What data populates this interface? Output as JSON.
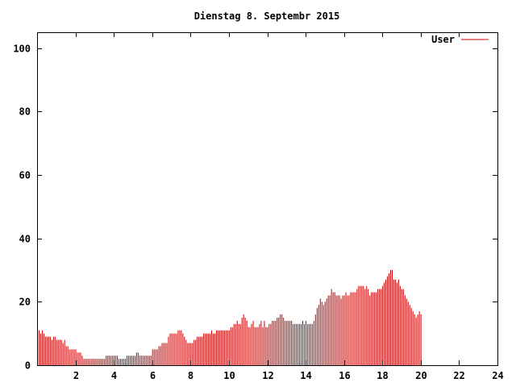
{
  "chart_data": {
    "type": "bar",
    "title": "Dienstag 8. Septembr 2015",
    "xlabel": "",
    "ylabel": "",
    "xlim": [
      0,
      24
    ],
    "ylim": [
      0,
      105
    ],
    "x_ticks": [
      "2",
      "4",
      "6",
      "8",
      "10",
      "12",
      "14",
      "16",
      "18",
      "20",
      "22",
      "24"
    ],
    "y_ticks": [
      "0",
      "20",
      "40",
      "60",
      "80",
      "100"
    ],
    "legend_position": "top-right",
    "grid": false,
    "bar_color": "#cc0000",
    "series": [
      {
        "name": "User",
        "color": "#cc0000",
        "x_start": 0,
        "x_step": 0.0833,
        "values": [
          12,
          11,
          10,
          11,
          10,
          9,
          9,
          9,
          9,
          8,
          9,
          9,
          8,
          8,
          8,
          8,
          7,
          8,
          6,
          6,
          5,
          5,
          5,
          5,
          5,
          4,
          4,
          4,
          3,
          2,
          2,
          2,
          2,
          2,
          2,
          2,
          2,
          2,
          2,
          2,
          2,
          2,
          2,
          3,
          3,
          3,
          3,
          3,
          3,
          3,
          3,
          2,
          2,
          2,
          2,
          2,
          3,
          3,
          3,
          3,
          3,
          3,
          4,
          4,
          3,
          3,
          3,
          3,
          3,
          3,
          3,
          3,
          5,
          5,
          5,
          5,
          6,
          6,
          7,
          7,
          7,
          7,
          9,
          10,
          10,
          10,
          10,
          10,
          11,
          11,
          11,
          10,
          9,
          8,
          7,
          7,
          7,
          7,
          8,
          8,
          9,
          9,
          9,
          9,
          10,
          10,
          10,
          10,
          10,
          11,
          10,
          10,
          11,
          11,
          11,
          11,
          11,
          11,
          11,
          11,
          11,
          12,
          12,
          13,
          13,
          14,
          13,
          13,
          15,
          16,
          15,
          14,
          12,
          12,
          13,
          14,
          12,
          12,
          12,
          13,
          14,
          12,
          14,
          12,
          12,
          13,
          13,
          14,
          14,
          14,
          15,
          15,
          16,
          16,
          15,
          14,
          14,
          14,
          14,
          14,
          13,
          13,
          13,
          13,
          13,
          13,
          14,
          13,
          14,
          13,
          13,
          13,
          13,
          14,
          16,
          18,
          19,
          21,
          20,
          19,
          20,
          21,
          22,
          22,
          24,
          23,
          23,
          22,
          22,
          22,
          21,
          22,
          22,
          23,
          22,
          22,
          23,
          23,
          23,
          23,
          24,
          25,
          25,
          25,
          25,
          24,
          25,
          24,
          22,
          23,
          23,
          23,
          23,
          24,
          24,
          24,
          25,
          26,
          27,
          28,
          29,
          30,
          30,
          27,
          27,
          26,
          27,
          25,
          24,
          24,
          22,
          21,
          20,
          19,
          18,
          17,
          16,
          15,
          16,
          17,
          16
        ]
      }
    ]
  }
}
